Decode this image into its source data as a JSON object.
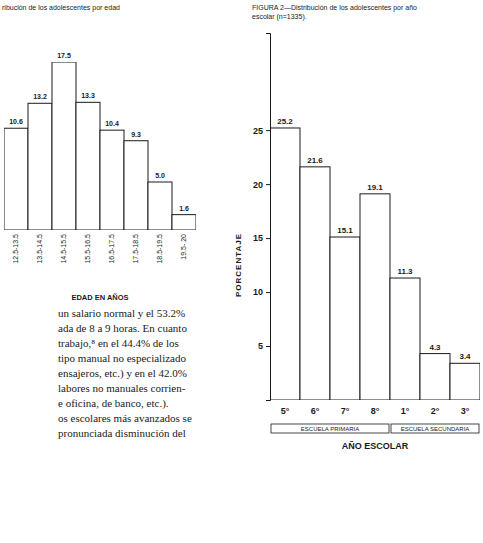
{
  "chart_data": [
    {
      "type": "bar",
      "title": "ribución de los adolescentes por edad",
      "categories": [
        "12.5-13.5",
        "13.5-14.5",
        "14.5-15.5",
        "15.5-16.5",
        "16.5-17.5",
        "17.5-18.5",
        "18.5-19.5",
        "19.5- 20"
      ],
      "values": [
        10.6,
        13.2,
        17.5,
        13.3,
        10.4,
        9.3,
        5.0,
        1.6
      ],
      "value_labels": [
        "10.6",
        "13.2",
        "17.5",
        "13.3",
        "10.4",
        "9.3",
        "5.0",
        "1.6"
      ],
      "x_label": "EDAD EN AÑOS",
      "ylim": [
        0,
        17.5
      ],
      "color": "#ffffff",
      "data_labels": true,
      "tick_labels": "x"
    },
    {
      "type": "bar",
      "title": "FIGURA 2—Distribución de los adolescentes por año escolar (n=1335).",
      "categories": [
        "5°",
        "6°",
        "7°",
        "8°",
        "1°",
        "2°",
        "3°"
      ],
      "values": [
        25.2,
        21.6,
        15.1,
        19.1,
        11.3,
        4.3,
        3.4
      ],
      "groups": [
        {
          "label": "ESCUELA PRIMARIA",
          "span": 4
        },
        {
          "label": "ESCUELA SECUNDARIA",
          "span": 3
        }
      ],
      "x_label": "AÑO ESCOLAR",
      "y_label": "PORCENTAJE",
      "ylim": [
        0,
        34
      ],
      "yticks": [
        5,
        10,
        15,
        20,
        25
      ],
      "color": "#ffffff",
      "data_labels": true
    }
  ],
  "body_text": [
    "un salario normal y el 53.2%",
    "ada de 8 a 9 horas. En cuanto",
    "trabajo,⁸ en el 44.4% de los",
    "tipo manual no especializado",
    "ensajeros, etc.) y en el 42.0%",
    "labores no manuales corrien-",
    "e oficina, de banco, etc.).",
    "os escolares más avanzados se",
    "pronunciada disminución del"
  ]
}
